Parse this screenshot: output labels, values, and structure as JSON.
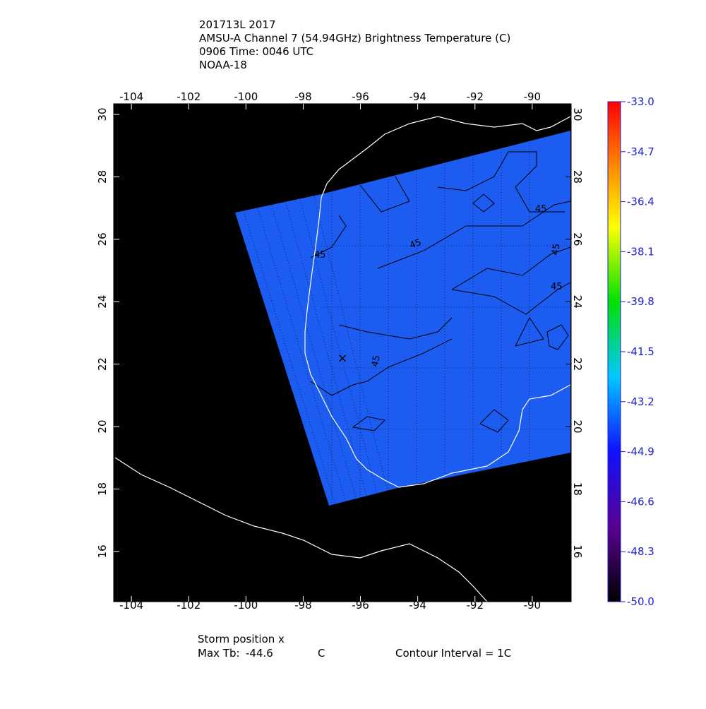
{
  "header": {
    "lines": [
      "201713L 2017",
      "AMSU-A Channel 7 (54.94GHz) Brightness Temperature (C)",
      "0906 Time: 0046 UTC",
      "NOAA-18"
    ]
  },
  "map": {
    "xlim": [
      -104.62,
      -88.64
    ],
    "ylim": [
      14.39,
      30.34
    ],
    "xticks": [
      -104,
      -102,
      -100,
      -98,
      -96,
      -94,
      -92,
      -90
    ],
    "yticks": [
      16,
      18,
      20,
      22,
      24,
      26,
      28,
      30
    ],
    "contour_labels": [
      "45",
      "45",
      "45",
      "45",
      "45",
      "45"
    ]
  },
  "colorbar": {
    "lim": [
      -50,
      -33
    ],
    "ticks": [
      {
        "value": -33,
        "label": "-33.0"
      },
      {
        "value": -34.7,
        "label": "-34.7"
      },
      {
        "value": -36.4,
        "label": "-36.4"
      },
      {
        "value": -38.1,
        "label": "-38.1"
      },
      {
        "value": -39.8,
        "label": "-39.8"
      },
      {
        "value": -41.5,
        "label": "-41.5"
      },
      {
        "value": -43.2,
        "label": "-43.2"
      },
      {
        "value": -44.9,
        "label": "-44.9"
      },
      {
        "value": -46.6,
        "label": "-46.6"
      },
      {
        "value": -48.3,
        "label": "-48.3"
      },
      {
        "value": -50,
        "label": "-50.0"
      }
    ]
  },
  "footer": {
    "storm": "Storm position x",
    "max_tb_label": "Max Tb:",
    "max_tb": -44.6,
    "unit": "C",
    "contour": "Contour Interval = 1C"
  }
}
